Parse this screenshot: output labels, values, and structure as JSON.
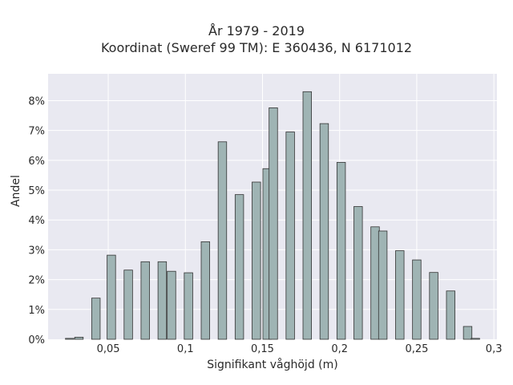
{
  "chart_data": {
    "type": "bar",
    "title": "År 1979 - 2019",
    "subtitle": "Koordinat (Sweref 99 TM): E 360436, N 6171012",
    "xlabel": "Signifikant våghöjd (m)",
    "ylabel": "Andel",
    "xlim": [
      0.011,
      0.302
    ],
    "ylim": [
      0,
      8.9
    ],
    "x_ticks": [
      0.05,
      0.1,
      0.15,
      0.2,
      0.25,
      0.3
    ],
    "x_tick_labels": [
      "0,05",
      "0,1",
      "0,15",
      "0,2",
      "0,25",
      "0,3"
    ],
    "y_ticks": [
      0,
      1,
      2,
      3,
      4,
      5,
      6,
      7,
      8
    ],
    "y_tick_labels": [
      "0%",
      "1%",
      "2%",
      "3%",
      "4%",
      "5%",
      "6%",
      "7%",
      "8%"
    ],
    "bar_width": 0.0055,
    "x": [
      0.025,
      0.031,
      0.042,
      0.052,
      0.063,
      0.074,
      0.085,
      0.091,
      0.102,
      0.113,
      0.124,
      0.135,
      0.146,
      0.153,
      0.157,
      0.168,
      0.179,
      0.19,
      0.201,
      0.212,
      0.223,
      0.228,
      0.239,
      0.25,
      0.261,
      0.272,
      0.283,
      0.288
    ],
    "values": [
      0.03,
      0.07,
      1.38,
      2.82,
      2.32,
      2.6,
      2.6,
      2.28,
      2.23,
      3.27,
      6.62,
      4.85,
      5.27,
      5.72,
      7.76,
      6.95,
      8.3,
      7.23,
      5.93,
      4.45,
      3.77,
      3.63,
      2.97,
      2.66,
      2.24,
      1.62,
      0.43,
      0.03
    ],
    "bar_color": "#9fb4b4",
    "edge_color": "#333333",
    "grid": true,
    "background": "#e9e9f1"
  }
}
